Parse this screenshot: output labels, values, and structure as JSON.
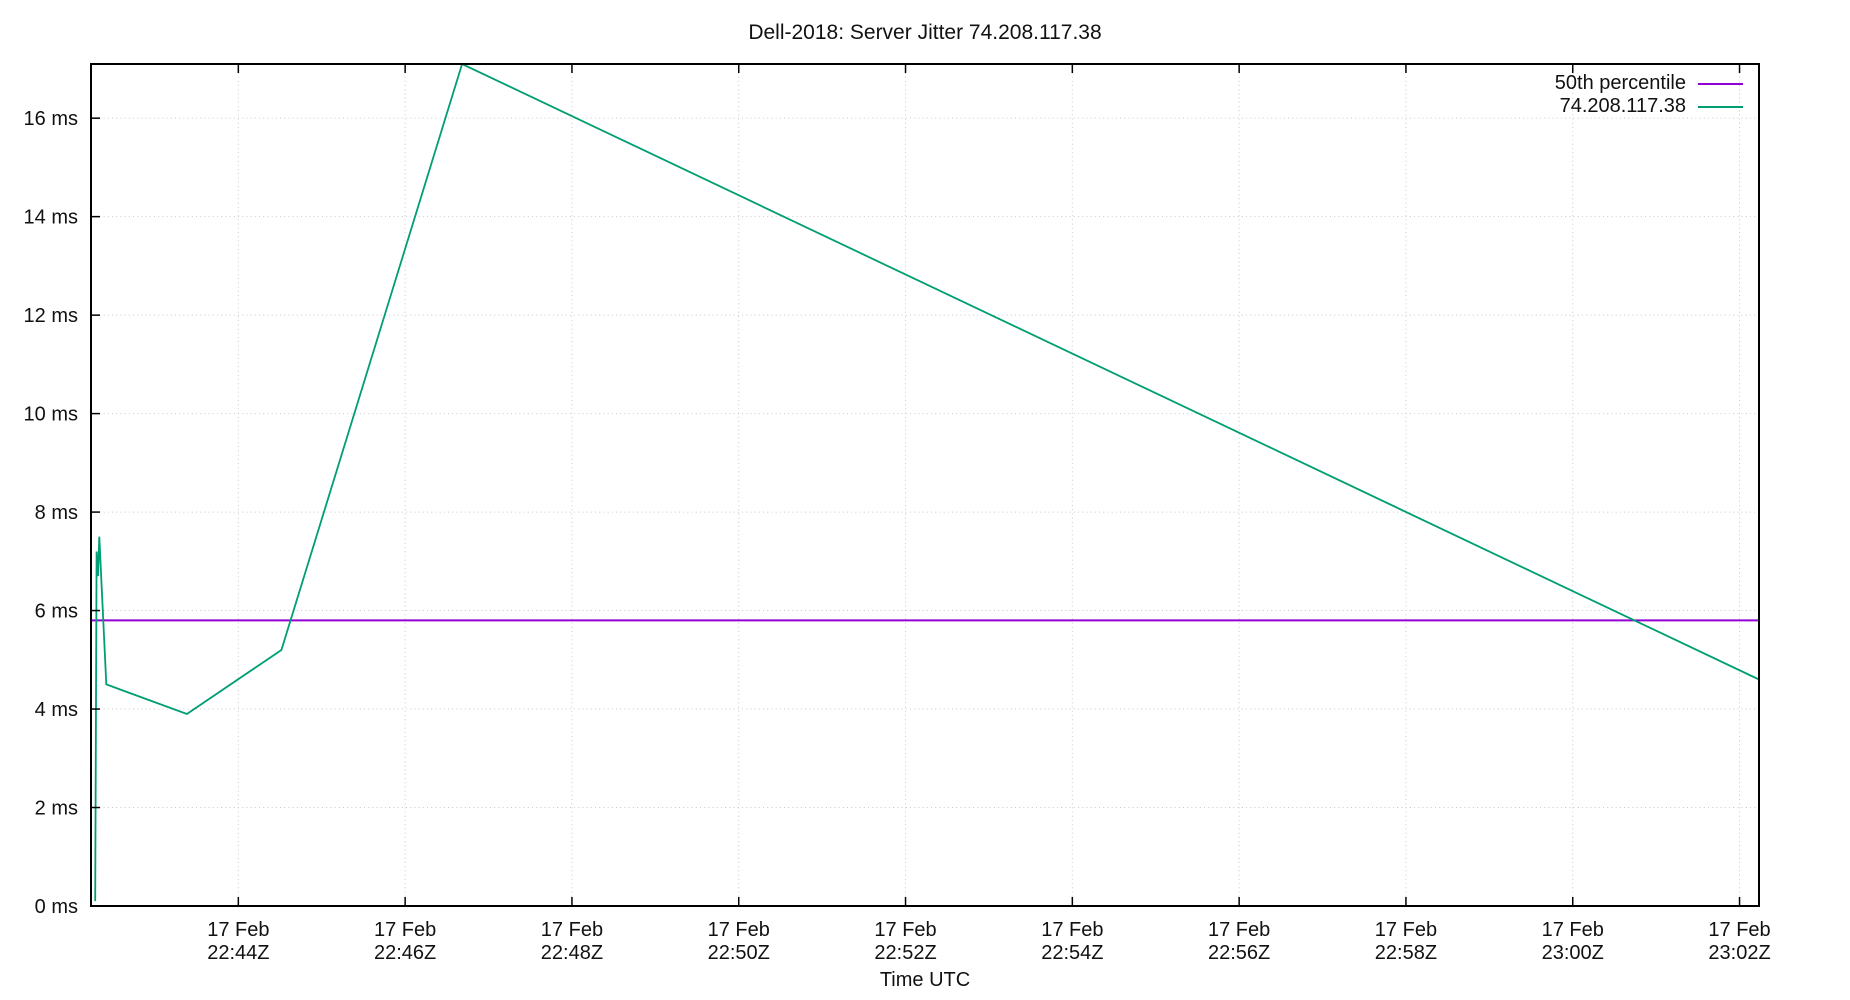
{
  "chart_data": {
    "type": "line",
    "title": "Dell-2018: Server Jitter 74.208.117.38",
    "xlabel": "Time UTC",
    "ylabel": "",
    "y_unit": "ms",
    "ylim": [
      0,
      17.1
    ],
    "x_time_range": [
      "22:42:14",
      "23:02:14"
    ],
    "x_tick_date": "17 Feb",
    "x_tick_times": [
      "22:44Z",
      "22:46Z",
      "22:48Z",
      "22:50Z",
      "22:52Z",
      "22:54Z",
      "22:56Z",
      "22:58Z",
      "23:00Z",
      "23:02Z"
    ],
    "y_tick_labels": [
      "0 ms",
      "2 ms",
      "4 ms",
      "6 ms",
      "8 ms",
      "10 ms",
      "12 ms",
      "14 ms",
      "16 ms"
    ],
    "grid": "dotted",
    "legend_position": "top-right-inside",
    "colors": {
      "percentile_line": "#9400d3",
      "series_line": "#009e73",
      "grid": "#c9c9c9",
      "border": "#000000",
      "text": "#111111",
      "background": "#ffffff"
    },
    "series": [
      {
        "name": "50th percentile",
        "type": "constant-line",
        "color": "#9400d3",
        "value_ms": 5.8
      },
      {
        "name": "74.208.117.38",
        "type": "line",
        "color": "#009e73",
        "points": [
          {
            "t": "22:42:17",
            "ms": 0.1
          },
          {
            "t": "22:42:18",
            "ms": 7.2
          },
          {
            "t": "22:42:19",
            "ms": 6.7
          },
          {
            "t": "22:42:20",
            "ms": 7.5
          },
          {
            "t": "22:42:25",
            "ms": 4.5
          },
          {
            "t": "22:43:23",
            "ms": 3.9
          },
          {
            "t": "22:44:31",
            "ms": 5.2
          },
          {
            "t": "22:46:41",
            "ms": 17.1
          },
          {
            "t": "23:02:14",
            "ms": 4.6
          }
        ]
      }
    ]
  }
}
